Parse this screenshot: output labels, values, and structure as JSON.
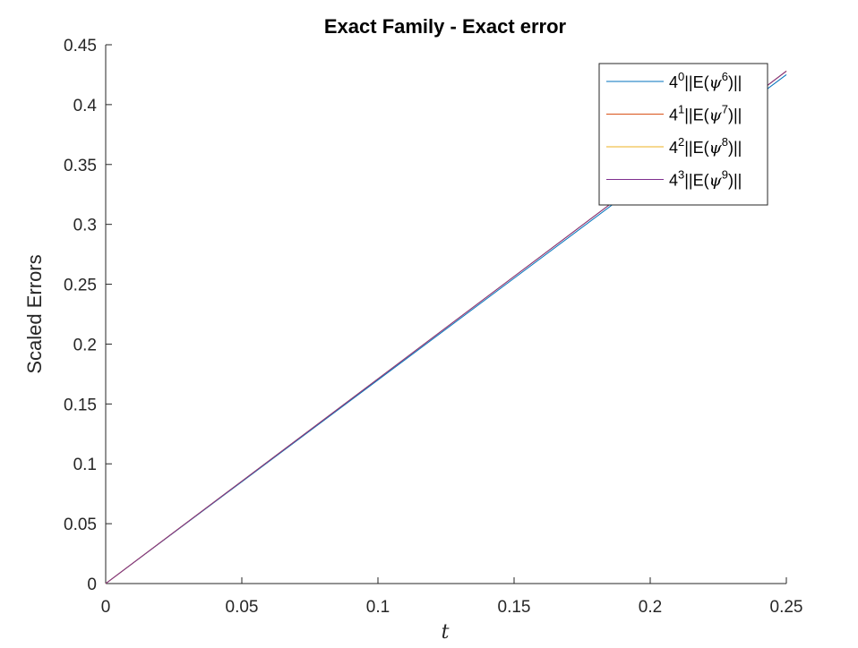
{
  "chart_data": {
    "type": "line",
    "title": "Exact Family - Exact error",
    "xlabel": "t",
    "ylabel": "Scaled Errors",
    "xlim": [
      0,
      0.25
    ],
    "ylim": [
      0,
      0.45
    ],
    "xticks": [
      0,
      0.05,
      0.1,
      0.15,
      0.2,
      0.25
    ],
    "xtick_labels": [
      "0",
      "0.05",
      "0.1",
      "0.15",
      "0.2",
      "0.25"
    ],
    "yticks": [
      0,
      0.05,
      0.1,
      0.15,
      0.2,
      0.25,
      0.3,
      0.35,
      0.4,
      0.45
    ],
    "ytick_labels": [
      "0",
      "0.05",
      "0.1",
      "0.15",
      "0.2",
      "0.25",
      "0.3",
      "0.35",
      "0.4",
      "0.45"
    ],
    "grid": false,
    "legend_position": "top-right",
    "series": [
      {
        "legend_parts": {
          "base": "4",
          "exp": "0",
          "pre": "||E(",
          "psi": "ψ",
          "sup": "6",
          "post": ")||"
        },
        "color": "#0072BD",
        "x": [
          0,
          0.05,
          0.1,
          0.15,
          0.2,
          0.25
        ],
        "y": [
          0,
          0.085,
          0.17,
          0.255,
          0.34,
          0.425
        ]
      },
      {
        "legend_parts": {
          "base": "4",
          "exp": "1",
          "pre": "||E(",
          "psi": "ψ",
          "sup": "7",
          "post": ")||"
        },
        "color": "#D95319",
        "x": [
          0,
          0.05,
          0.1,
          0.15,
          0.2,
          0.25
        ],
        "y": [
          0,
          0.0855,
          0.171,
          0.2565,
          0.342,
          0.428
        ]
      },
      {
        "legend_parts": {
          "base": "4",
          "exp": "2",
          "pre": "||E(",
          "psi": "ψ",
          "sup": "8",
          "post": ")||"
        },
        "color": "#EDB120",
        "x": [
          0,
          0.05,
          0.1,
          0.15,
          0.2,
          0.25
        ],
        "y": [
          0,
          0.0855,
          0.171,
          0.2565,
          0.342,
          0.428
        ]
      },
      {
        "legend_parts": {
          "base": "4",
          "exp": "3",
          "pre": "||E(",
          "psi": "ψ",
          "sup": "9",
          "post": ")||"
        },
        "color": "#7E2F8E",
        "x": [
          0,
          0.05,
          0.1,
          0.15,
          0.2,
          0.25
        ],
        "y": [
          0,
          0.0855,
          0.171,
          0.2565,
          0.342,
          0.428
        ]
      }
    ]
  }
}
